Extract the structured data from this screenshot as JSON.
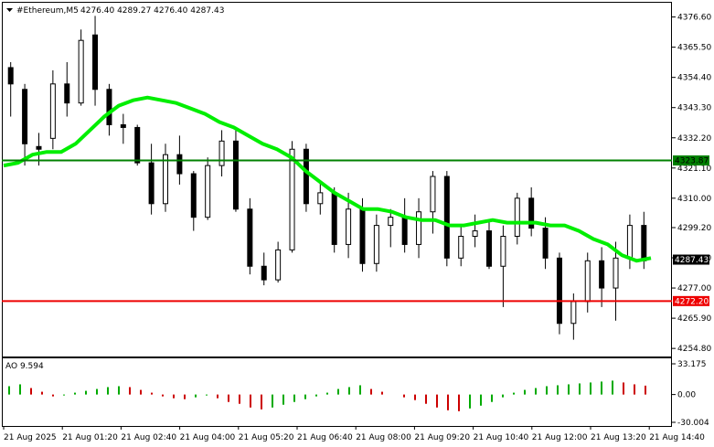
{
  "header": {
    "dropdown_icon": "triangle-down-icon",
    "symbol": "#Ethereum,M5",
    "ohlc": "4276.40 4289.27 4276.40 4287.43"
  },
  "colors": {
    "bull": "#000000",
    "bear": "#000000",
    "ma": "#00ee00",
    "support": "#008000",
    "resistance": "#ee0000",
    "ao_up": "#00aa00",
    "ao_down": "#cc0000",
    "grid": "#000000"
  },
  "price_axis": {
    "ticks": [
      "4376.60",
      "4365.50",
      "4354.40",
      "4343.30",
      "4332.20",
      "4321.10",
      "4310.00",
      "4299.20",
      "4288.10",
      "4277.00",
      "4265.90",
      "4254.80"
    ],
    "tick_values": [
      4376.6,
      4365.5,
      4354.4,
      4343.3,
      4332.2,
      4321.1,
      4310.0,
      4299.2,
      4288.1,
      4277.0,
      4265.9,
      4254.8
    ],
    "ylim": [
      4252.5,
      4381.5
    ]
  },
  "levels": {
    "green": {
      "label": "4323.87",
      "value": 4323.87
    },
    "red": {
      "label": "4272.20",
      "value": 4272.2
    },
    "current": {
      "label": "4287.43",
      "value": 4287.43
    }
  },
  "ao": {
    "title": "AO 9.594",
    "ticks": [
      "33.175",
      "0.00",
      "-30.004"
    ],
    "tick_values": [
      33.175,
      0,
      -30.004
    ]
  },
  "time_axis": {
    "labels": [
      "21 Aug 2025",
      "21 Aug 01:20",
      "21 Aug 02:40",
      "21 Aug 04:00",
      "21 Aug 05:20",
      "21 Aug 06:40",
      "21 Aug 08:00",
      "21 Aug 09:20",
      "21 Aug 10:40",
      "21 Aug 12:00",
      "21 Aug 13:20",
      "21 Aug 14:40"
    ]
  },
  "chart_data": {
    "type": "candlestick",
    "symbol": "#Ethereum,M5",
    "ylim": [
      4252.5,
      4381.5
    ],
    "moving_average": [
      4322,
      4323,
      4326,
      4327,
      4327,
      4330,
      4335,
      4340,
      4344,
      4346,
      4347,
      4346,
      4345,
      4343,
      4341,
      4338,
      4336,
      4333,
      4330,
      4328,
      4325,
      4320,
      4316,
      4312,
      4309,
      4306,
      4306,
      4305,
      4303,
      4302,
      4302,
      4300,
      4300,
      4301,
      4302,
      4301,
      4301,
      4301,
      4300,
      4300,
      4298,
      4295,
      4293,
      4289,
      4287,
      4288
    ],
    "candles": [
      [
        4358,
        4360,
        4340,
        4352
      ],
      [
        4350,
        4352,
        4322,
        4330
      ],
      [
        4329,
        4334,
        4322,
        4328
      ],
      [
        4332,
        4357,
        4328,
        4352
      ],
      [
        4352,
        4360,
        4340,
        4345
      ],
      [
        4345,
        4372,
        4344,
        4368
      ],
      [
        4370,
        4377,
        4344,
        4350
      ],
      [
        4350,
        4352,
        4333,
        4337
      ],
      [
        4337,
        4341,
        4330,
        4336
      ],
      [
        4336,
        4337,
        4322,
        4323
      ],
      [
        4323,
        4330,
        4304,
        4308
      ],
      [
        4308,
        4330,
        4305,
        4326
      ],
      [
        4326,
        4333,
        4315,
        4319
      ],
      [
        4319,
        4320,
        4298,
        4303
      ],
      [
        4303,
        4325,
        4302,
        4322
      ],
      [
        4322,
        4335,
        4318,
        4331
      ],
      [
        4331,
        4336,
        4305,
        4306
      ],
      [
        4306,
        4310,
        4282,
        4285
      ],
      [
        4285,
        4290,
        4278,
        4280
      ],
      [
        4280,
        4294,
        4279,
        4291
      ],
      [
        4291,
        4331,
        4290,
        4328
      ],
      [
        4328,
        4330,
        4305,
        4308
      ],
      [
        4308,
        4316,
        4304,
        4312
      ],
      [
        4312,
        4314,
        4290,
        4293
      ],
      [
        4293,
        4312,
        4288,
        4306
      ],
      [
        4306,
        4310,
        4283,
        4286
      ],
      [
        4286,
        4304,
        4283,
        4300
      ],
      [
        4300,
        4306,
        4292,
        4303
      ],
      [
        4303,
        4310,
        4290,
        4293
      ],
      [
        4293,
        4310,
        4288,
        4305
      ],
      [
        4305,
        4320,
        4297,
        4318
      ],
      [
        4318,
        4320,
        4285,
        4288
      ],
      [
        4288,
        4300,
        4285,
        4296
      ],
      [
        4296,
        4304,
        4292,
        4298
      ],
      [
        4298,
        4302,
        4284,
        4285
      ],
      [
        4285,
        4300,
        4270,
        4296
      ],
      [
        4296,
        4312,
        4293,
        4310
      ],
      [
        4310,
        4314,
        4296,
        4299
      ],
      [
        4299,
        4303,
        4284,
        4288
      ],
      [
        4288,
        4290,
        4260,
        4264
      ],
      [
        4264,
        4275,
        4258,
        4272
      ],
      [
        4272,
        4290,
        4268,
        4287
      ],
      [
        4287,
        4292,
        4270,
        4277
      ],
      [
        4277,
        4294,
        4265,
        4288
      ],
      [
        4288,
        4304,
        4284,
        4300
      ],
      [
        4300,
        4305,
        4284,
        4287
      ]
    ],
    "ao_values": [
      9,
      11,
      7,
      3,
      -2,
      -1,
      2,
      4,
      6,
      8,
      9,
      8,
      5,
      2,
      -2,
      -4,
      -5,
      -3,
      -1,
      -4,
      -8,
      -10,
      -14,
      -16,
      -14,
      -11,
      -8,
      -5,
      -2,
      2,
      6,
      8,
      10,
      6,
      3,
      0,
      -3,
      -6,
      -10,
      -14,
      -17,
      -18,
      -15,
      -12,
      -8,
      -3,
      2,
      5,
      7,
      9,
      10,
      11,
      12,
      13,
      14,
      15,
      13,
      11,
      9.594
    ]
  }
}
